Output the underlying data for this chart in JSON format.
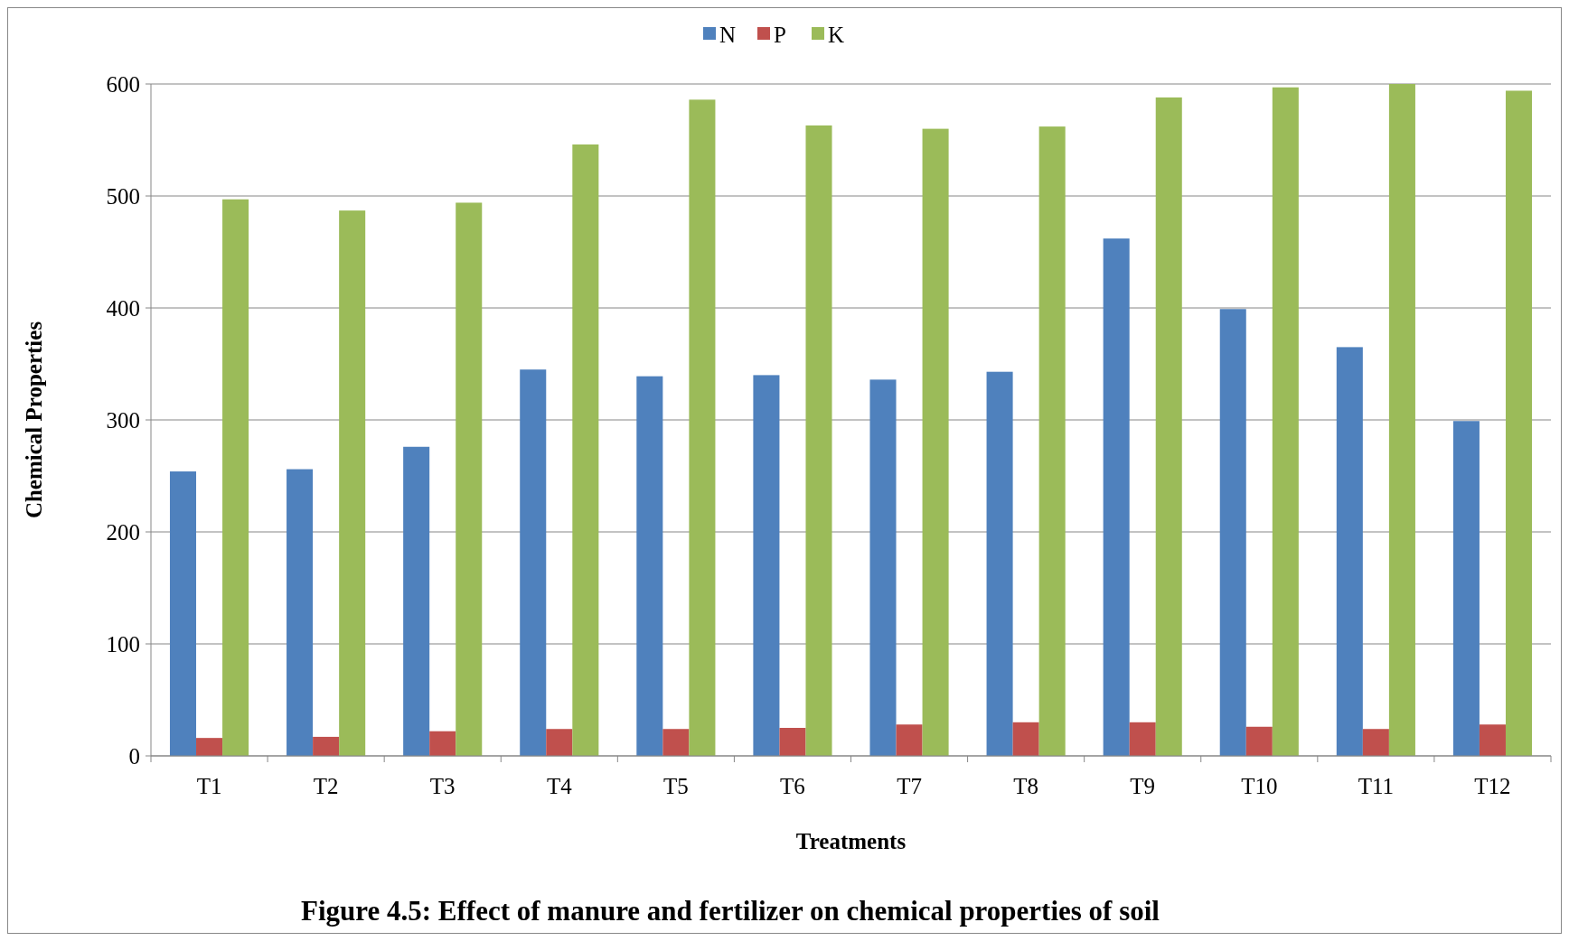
{
  "chart_data": {
    "type": "bar",
    "title": "Figure 4.5: Effect of manure and fertilizer on chemical properties of soil",
    "xlabel": "Treatments",
    "ylabel": "Chemical Properties",
    "categories": [
      "T1",
      "T2",
      "T3",
      "T4",
      "T5",
      "T6",
      "T7",
      "T8",
      "T9",
      "T10",
      "T11",
      "T12"
    ],
    "series": [
      {
        "name": "N",
        "color": "#4f81bd",
        "values": [
          254,
          256,
          276,
          345,
          339,
          340,
          336,
          343,
          462,
          399,
          365,
          299
        ]
      },
      {
        "name": "P",
        "color": "#c0504d",
        "values": [
          16,
          17,
          22,
          24,
          24,
          25,
          28,
          30,
          30,
          26,
          24,
          28
        ]
      },
      {
        "name": "K",
        "color": "#9bbb59",
        "values": [
          497,
          487,
          494,
          546,
          586,
          563,
          560,
          562,
          588,
          597,
          600,
          594
        ]
      }
    ],
    "ylim": [
      0,
      600
    ],
    "yticks": [
      0,
      100,
      200,
      300,
      400,
      500,
      600
    ],
    "grid": "y",
    "legend": "top"
  }
}
